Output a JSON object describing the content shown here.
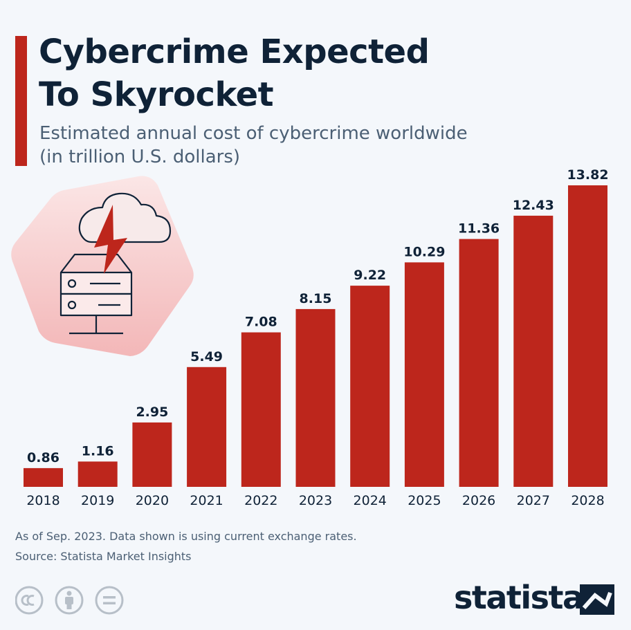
{
  "header": {
    "title_line1": "Cybercrime Expected",
    "title_line2": "To Skyrocket",
    "subtitle_line1": "Estimated annual cost of cybercrime worldwide",
    "subtitle_line2": "(in trillion U.S. dollars)"
  },
  "chart_data": {
    "type": "bar",
    "title": "Cybercrime Expected To Skyrocket",
    "subtitle": "Estimated annual cost of cybercrime worldwide (in trillion U.S. dollars)",
    "categories": [
      "2018",
      "2019",
      "2020",
      "2021",
      "2022",
      "2023",
      "2024",
      "2025",
      "2026",
      "2027",
      "2028"
    ],
    "values": [
      0.86,
      1.16,
      2.95,
      5.49,
      7.08,
      8.15,
      9.22,
      10.29,
      11.36,
      12.43,
      13.82
    ],
    "value_labels": [
      "0.86",
      "1.16",
      "2.95",
      "5.49",
      "7.08",
      "8.15",
      "9.22",
      "10.29",
      "11.36",
      "12.43",
      "13.82"
    ],
    "xlabel": "",
    "ylabel": "",
    "ylim": [
      0,
      13.82
    ],
    "grid": false,
    "legend": "none",
    "bar_color": "#bd261c"
  },
  "footer": {
    "note": "As of Sep. 2023. Data shown is using current exchange rates.",
    "source": "Source: Statista Market Insights",
    "brand": "statista",
    "icons": [
      "cc-icon",
      "attribution-icon",
      "no-derivatives-icon"
    ]
  },
  "colors": {
    "accent": "#bd261c",
    "title": "#0f2237",
    "text_muted": "#4b5f74",
    "background": "#f4f7fb"
  }
}
